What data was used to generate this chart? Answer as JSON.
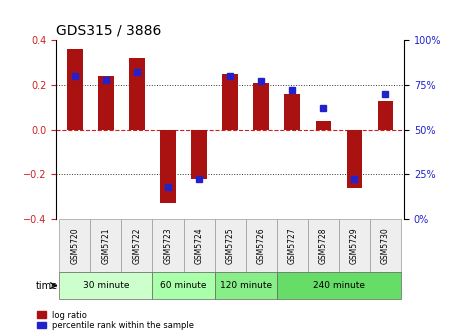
{
  "title": "GDS315 / 3886",
  "samples": [
    "GSM5720",
    "GSM5721",
    "GSM5722",
    "GSM5723",
    "GSM5724",
    "GSM5725",
    "GSM5726",
    "GSM5727",
    "GSM5728",
    "GSM5729",
    "GSM5730"
  ],
  "log_ratio": [
    0.36,
    0.24,
    0.32,
    -0.33,
    -0.22,
    0.25,
    0.21,
    0.16,
    0.04,
    -0.26,
    0.13
  ],
  "percentile": [
    80,
    78,
    82,
    18,
    22,
    80,
    77,
    72,
    62,
    22,
    70
  ],
  "ylim": [
    -0.4,
    0.4
  ],
  "yticks_left": [
    -0.4,
    -0.2,
    0.0,
    0.2,
    0.4
  ],
  "yticks_right": [
    0,
    25,
    50,
    75,
    100
  ],
  "bar_color": "#aa1111",
  "dot_color": "#2222cc",
  "bar_width": 0.5,
  "groups": [
    {
      "label": "30 minute",
      "start": 0,
      "end": 3,
      "color": "#ccffcc"
    },
    {
      "label": "60 minute",
      "start": 3,
      "end": 5,
      "color": "#aaffaa"
    },
    {
      "label": "120 minute",
      "start": 5,
      "end": 7,
      "color": "#88ee88"
    },
    {
      "label": "240 minute",
      "start": 7,
      "end": 11,
      "color": "#66dd66"
    }
  ],
  "time_label": "time",
  "legend_log_ratio": "log ratio",
  "legend_percentile": "percentile rank within the sample",
  "background_color": "#ffffff",
  "dotted_line_color": "#333333",
  "zero_line_color": "#cc2222"
}
